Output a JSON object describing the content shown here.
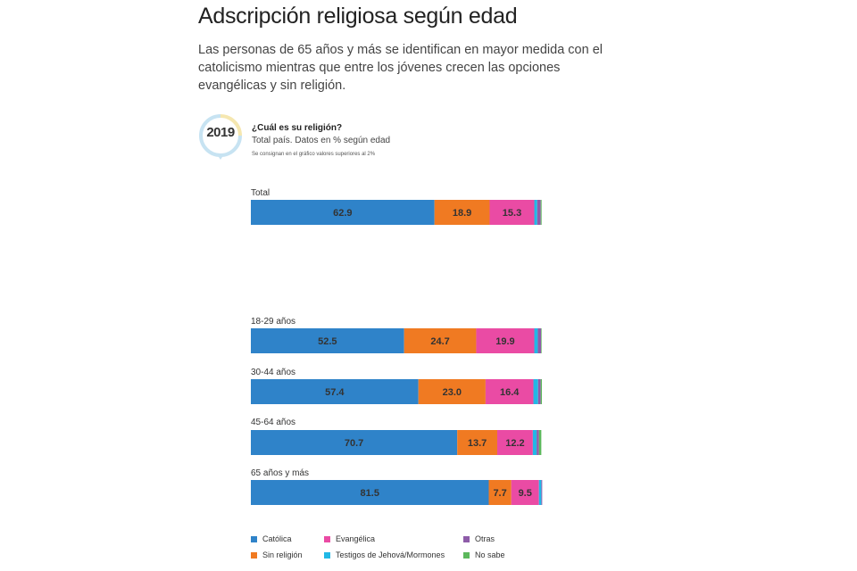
{
  "header": {
    "title": "Adscripción religiosa según edad",
    "subtitle": "Las personas de 65 años y más se identifican en mayor medida con el catolicismo mientras que entre los jóvenes crecen las opciones evangélicas y sin religión."
  },
  "badge": {
    "year": "2019"
  },
  "question": {
    "title": "¿Cuál es su religión?",
    "subtitle": "Total país. Datos en % según edad",
    "note": "Se consignan en el gráfico valores superiores al 2%"
  },
  "chart_data": {
    "type": "bar",
    "orientation": "horizontal",
    "stacked": true,
    "xlim": [
      0,
      100
    ],
    "grid": false,
    "legend_position": "bottom",
    "categories": [
      "Total",
      "18-29 años",
      "30-44 años",
      "45-64 años",
      "65 años y más"
    ],
    "series": [
      {
        "name": "Católica",
        "color": "#2f83c9",
        "values": [
          62.9,
          52.5,
          57.4,
          70.7,
          81.5
        ]
      },
      {
        "name": "Sin religión",
        "color": "#f07a22",
        "values": [
          18.9,
          24.7,
          23.0,
          13.7,
          7.7
        ]
      },
      {
        "name": "Evangélica",
        "color": "#ea4ba4",
        "values": [
          15.3,
          19.9,
          16.4,
          12.2,
          9.5
        ]
      },
      {
        "name": "Testigos de Jehová/Mormones",
        "color": "#21b8e6",
        "values": [
          1.0,
          1.2,
          1.6,
          1.3,
          0.8
        ]
      },
      {
        "name": "Otras",
        "color": "#8e5ca9",
        "values": [
          1.2,
          1.1,
          0.9,
          0.8,
          0.3
        ]
      },
      {
        "name": "No sabe",
        "color": "#5cb85c",
        "values": [
          0.3,
          0.2,
          0.4,
          0.8,
          0.0
        ]
      }
    ],
    "label_threshold": 2
  },
  "legend": {
    "items": [
      {
        "label": "Católica",
        "color": "#2f83c9"
      },
      {
        "label": "Evangélica",
        "color": "#ea4ba4"
      },
      {
        "label": "Otras",
        "color": "#8e5ca9"
      },
      {
        "label": "Sin religión",
        "color": "#f07a22"
      },
      {
        "label": "Testigos de Jehová/Mormones",
        "color": "#21b8e6"
      },
      {
        "label": "No sabe",
        "color": "#5cb85c"
      }
    ]
  }
}
